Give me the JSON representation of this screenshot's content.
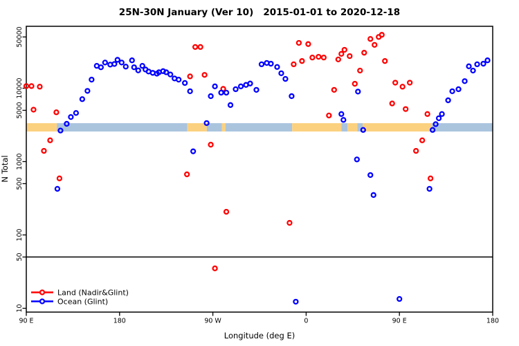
{
  "chart_data": {
    "type": "scatter",
    "title": "25N-30N January (Ver 10)   2015-01-01 to 2020-12-18",
    "xlabel": "Longitude (deg E)",
    "ylabel": "N Total",
    "x_axis": {
      "range": [
        90,
        540
      ],
      "ticks": [
        90,
        180,
        270,
        360,
        450,
        540
      ],
      "tick_labels": [
        "90 E",
        "180",
        "90 W",
        "0",
        "90 E",
        "180"
      ]
    },
    "y_axis": {
      "scale": "log",
      "range": [
        9,
        72000
      ],
      "ticks": [
        10,
        50,
        100,
        500,
        1000,
        5000,
        10000,
        50000
      ],
      "tick_labels": [
        "10",
        "50",
        "100",
        "500",
        "1000",
        "5000",
        "10000",
        "50000"
      ]
    },
    "reference_line_y": 50,
    "land_ocean_band": {
      "y_range": [
        2570,
        3340
      ],
      "land_color": "#fbd180",
      "ocean_color": "#aac4de",
      "segments": [
        [
          90,
          119.5,
          "land"
        ],
        [
          119.5,
          245.3,
          "ocean"
        ],
        [
          245.3,
          264.2,
          "land"
        ],
        [
          264.2,
          278.8,
          "ocean"
        ],
        [
          278.8,
          282.3,
          "land"
        ],
        [
          282.3,
          346.5,
          "ocean"
        ],
        [
          346.5,
          394,
          "land"
        ],
        [
          394,
          400,
          "ocean"
        ],
        [
          400,
          409.5,
          "land"
        ],
        [
          409.5,
          414.5,
          "ocean"
        ],
        [
          414.5,
          481.5,
          "land"
        ],
        [
          481.5,
          540,
          "ocean"
        ]
      ]
    },
    "series": [
      {
        "name": "Land (Nadir&Glint)",
        "color": "#ff0000",
        "points": [
          [
            90,
            10700
          ],
          [
            95,
            10700
          ],
          [
            103,
            10500
          ],
          [
            97,
            5100
          ],
          [
            119,
            4700
          ],
          [
            113,
            1950
          ],
          [
            107,
            1400
          ],
          [
            122,
            590
          ],
          [
            253,
            36500
          ],
          [
            258,
            36500
          ],
          [
            248,
            14500
          ],
          [
            262,
            15200
          ],
          [
            280,
            9800
          ],
          [
            268,
            1700
          ],
          [
            245,
            670
          ],
          [
            283,
            207
          ],
          [
            272,
            35
          ],
          [
            344,
            146
          ],
          [
            348,
            21200
          ],
          [
            353,
            41500
          ],
          [
            356,
            23500
          ],
          [
            362,
            40000
          ],
          [
            366,
            26200
          ],
          [
            372,
            26800
          ],
          [
            377,
            26200
          ],
          [
            382,
            4250
          ],
          [
            387,
            9500
          ],
          [
            391,
            24700
          ],
          [
            394,
            29400
          ],
          [
            397,
            33400
          ],
          [
            402,
            27400
          ],
          [
            407,
            11500
          ],
          [
            412,
            17400
          ],
          [
            416,
            30500
          ],
          [
            422,
            47000
          ],
          [
            426,
            39000
          ],
          [
            430,
            50000
          ],
          [
            433,
            53500
          ],
          [
            436,
            23500
          ],
          [
            443,
            6200
          ],
          [
            446,
            11900
          ],
          [
            453,
            10500
          ],
          [
            456,
            5200
          ],
          [
            460,
            11900
          ],
          [
            466,
            1400
          ],
          [
            472,
            1950
          ],
          [
            477,
            4450
          ],
          [
            480,
            590
          ]
        ]
      },
      {
        "name": "Ocean (Glint)",
        "color": "#0000ff",
        "points": [
          [
            120,
            425
          ],
          [
            123,
            2650
          ],
          [
            129,
            3270
          ],
          [
            133,
            4050
          ],
          [
            138,
            4600
          ],
          [
            144,
            7100
          ],
          [
            149,
            9200
          ],
          [
            153,
            13100
          ],
          [
            158,
            20200
          ],
          [
            162,
            19300
          ],
          [
            166,
            22400
          ],
          [
            171,
            21000
          ],
          [
            175,
            21400
          ],
          [
            178,
            24400
          ],
          [
            182,
            22400
          ],
          [
            186,
            19700
          ],
          [
            192,
            24000
          ],
          [
            194,
            19300
          ],
          [
            198,
            17500
          ],
          [
            202,
            20200
          ],
          [
            205,
            18000
          ],
          [
            208,
            16900
          ],
          [
            212,
            16200
          ],
          [
            216,
            15800
          ],
          [
            218,
            16500
          ],
          [
            222,
            17100
          ],
          [
            225,
            16500
          ],
          [
            229,
            15400
          ],
          [
            233,
            13600
          ],
          [
            237,
            13100
          ],
          [
            243,
            11800
          ],
          [
            248,
            9100
          ],
          [
            251,
            1380
          ],
          [
            264,
            3350
          ],
          [
            268,
            7800
          ],
          [
            272,
            10600
          ],
          [
            278,
            8700
          ],
          [
            283,
            8700
          ],
          [
            287,
            5900
          ],
          [
            292,
            9700
          ],
          [
            297,
            10600
          ],
          [
            302,
            11100
          ],
          [
            306,
            11600
          ],
          [
            312,
            9500
          ],
          [
            317,
            21200
          ],
          [
            322,
            22100
          ],
          [
            326,
            21600
          ],
          [
            332,
            19500
          ],
          [
            336,
            16000
          ],
          [
            340,
            13400
          ],
          [
            346,
            7800
          ],
          [
            350,
            12.3
          ],
          [
            394,
            4450
          ],
          [
            396,
            3700
          ],
          [
            409,
            1070
          ],
          [
            410,
            9000
          ],
          [
            415,
            2700
          ],
          [
            422,
            655
          ],
          [
            425,
            350
          ],
          [
            450,
            13.4
          ],
          [
            479,
            425
          ],
          [
            482,
            2700
          ],
          [
            485,
            3240
          ],
          [
            488,
            3900
          ],
          [
            491,
            4450
          ],
          [
            497,
            6850
          ],
          [
            501,
            9100
          ],
          [
            507,
            9700
          ],
          [
            513,
            12500
          ],
          [
            517,
            19900
          ],
          [
            521,
            17400
          ],
          [
            525,
            21200
          ],
          [
            531,
            21600
          ],
          [
            535,
            24000
          ]
        ]
      }
    ],
    "legend": {
      "position": "bottom-left",
      "entries": [
        "Land (Nadir&Glint)",
        "Ocean (Glint)"
      ]
    }
  }
}
